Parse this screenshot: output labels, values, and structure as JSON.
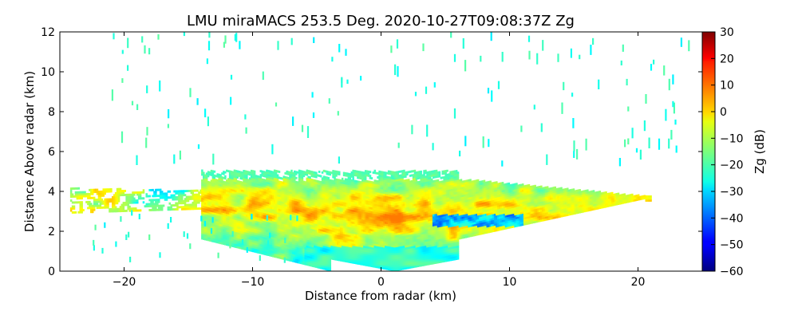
{
  "chart_data": {
    "type": "heatmap",
    "title": "LMU miraMACS 253.5 Deg. 2020-10-27T09:08:37Z  Zg",
    "xlabel": "Distance from radar (km)",
    "ylabel": "Distance Above radar  (km)",
    "xlim": [
      -25,
      25
    ],
    "ylim": [
      0,
      12
    ],
    "xticks": [
      -20,
      -10,
      0,
      10,
      20
    ],
    "xtick_labels": [
      "−20",
      "−10",
      "0",
      "10",
      "20"
    ],
    "yticks": [
      0,
      2,
      4,
      6,
      8,
      10,
      12
    ],
    "ytick_labels": [
      "0",
      "2",
      "4",
      "6",
      "8",
      "10",
      "12"
    ],
    "colorbar": {
      "label": "Zg (dB)",
      "range": [
        -60,
        30
      ],
      "ticks": [
        30,
        20,
        10,
        0,
        -10,
        -20,
        -30,
        -40,
        -50,
        -60
      ],
      "tick_labels": [
        "30",
        "20",
        "10",
        "0",
        "−10",
        "−20",
        "−30",
        "−40",
        "−50",
        "−60"
      ],
      "colormap": "jet"
    },
    "grid": false,
    "echo_layer": {
      "description_units": "km",
      "x_extent": [
        -24,
        20.5
      ],
      "main_top_km": 5.0,
      "peak_value_db": 8,
      "min_value_db": -45
    }
  }
}
